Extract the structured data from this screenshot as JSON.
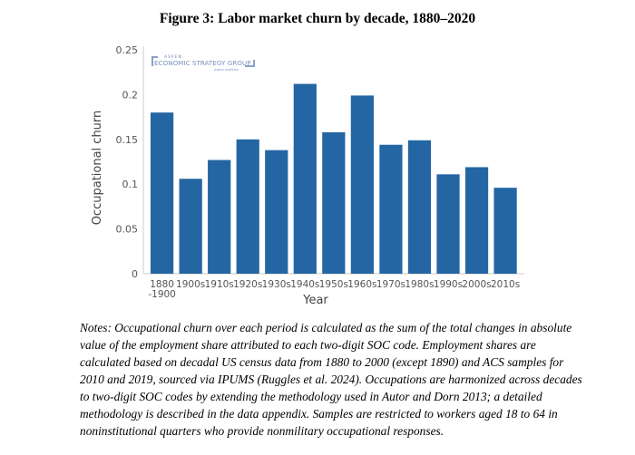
{
  "figure": {
    "title": "Figure 3: Labor market churn by decade, 1880–2020",
    "notes": "Notes: Occupational churn over each period is calculated as the sum of the total changes in absolute value of the employment share attributed to each two-digit SOC code. Employment shares are calculated based on decadal US census data from 1880 to 2000 (except 1890) and ACS samples for 2010 and 2019, sourced via IPUMS (Ruggles et al. 2024). Occupations are harmonized across decades to two-digit SOC codes by extending the methodology used in Autor and Dorn 2013; a detailed methodology is described in the data appendix. Samples are restricted to workers aged 18 to 64 in noninstitutional quarters who provide nonmilitary occupational responses."
  },
  "watermark": {
    "line1": "ASPEN",
    "line2": "ECONOMIC STRATEGY GROUP",
    "line3": "aspen institute"
  },
  "chart_data": {
    "type": "bar",
    "title": "Figure 3: Labor market churn by decade, 1880–2020",
    "xlabel": "Year",
    "ylabel": "Occupational churn",
    "categories": [
      "1880\n-1900",
      "1900s",
      "1910s",
      "1920s",
      "1930s",
      "1940s",
      "1950s",
      "1960s",
      "1970s",
      "1980s",
      "1990s",
      "2000s",
      "2010s"
    ],
    "values": [
      0.18,
      0.106,
      0.127,
      0.15,
      0.138,
      0.212,
      0.158,
      0.199,
      0.144,
      0.149,
      0.111,
      0.119,
      0.096
    ],
    "ylim": [
      0,
      0.25
    ],
    "yticks": [
      0,
      0.05,
      0.1,
      0.15,
      0.2,
      0.25
    ],
    "ytick_labels": [
      "0",
      "0.05",
      "0.1",
      "0.15",
      "0.2",
      "0.25"
    ],
    "grid": false,
    "bar_color": "#2466a3"
  }
}
